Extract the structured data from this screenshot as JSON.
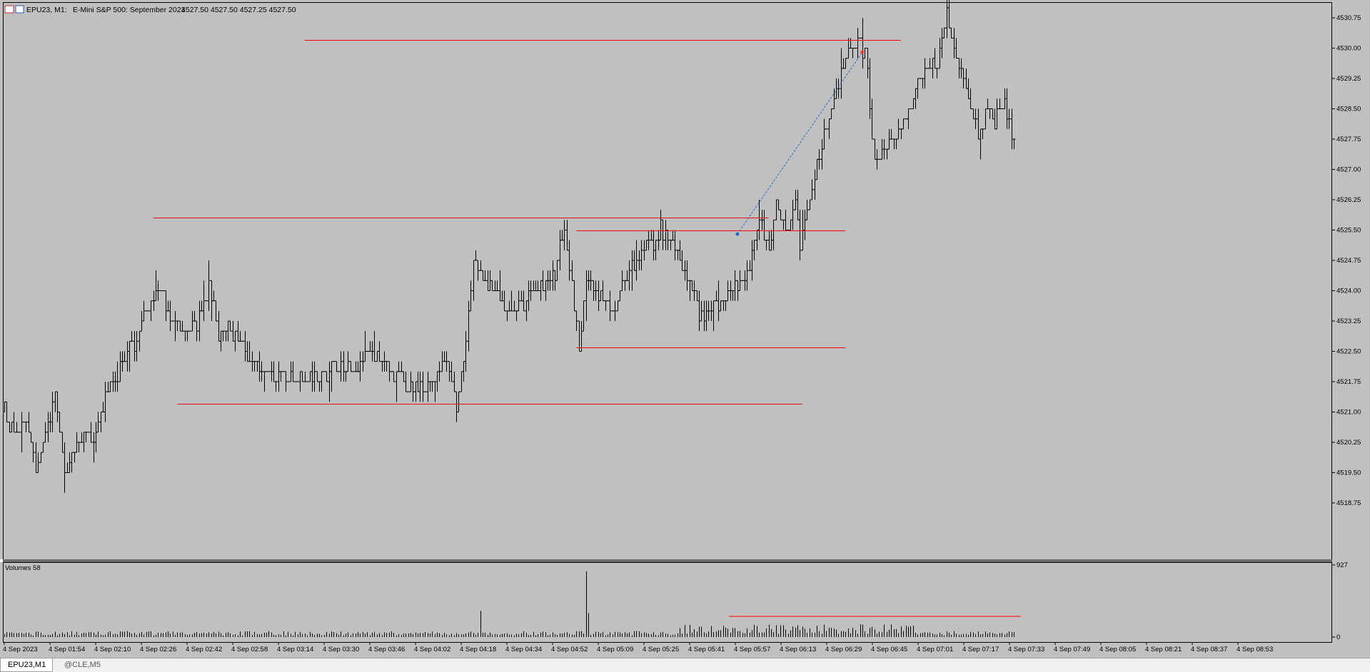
{
  "window": {
    "symbol_tf": "EPU23, M1:",
    "description": "E-Mini S&P 500: September 2023",
    "ohlc": "4527.50 4527.50 4527.25 4527.50"
  },
  "volume_pane": {
    "label": "Volumes 58",
    "scale_max": "927",
    "scale_min": "0"
  },
  "price_axis": [
    "4530.75",
    "4530.00",
    "4529.25",
    "4528.50",
    "4527.75",
    "4527.00",
    "4526.25",
    "4525.50",
    "4524.75",
    "4524.00",
    "4523.25",
    "4522.50",
    "4521.75",
    "4521.00",
    "4520.25",
    "4519.50",
    "4518.75"
  ],
  "time_axis": [
    "4 Sep 2023",
    "4 Sep 01:54",
    "4 Sep 02:10",
    "4 Sep 02:26",
    "4 Sep 02:42",
    "4 Sep 02:58",
    "4 Sep 03:14",
    "4 Sep 03:30",
    "4 Sep 03:46",
    "4 Sep 04:02",
    "4 Sep 04:18",
    "4 Sep 04:34",
    "4 Sep 04:52",
    "4 Sep 05:09",
    "4 Sep 05:25",
    "4 Sep 05:41",
    "4 Sep 05:57",
    "4 Sep 06:13",
    "4 Sep 06:29",
    "4 Sep 06:45",
    "4 Sep 07:01",
    "4 Sep 07:17",
    "4 Sep 07:33",
    "4 Sep 07:49",
    "4 Sep 08:05",
    "4 Sep 08:21",
    "4 Sep 08:37",
    "4 Sep 08:53"
  ],
  "tabs": [
    {
      "label": "EPU23,M1",
      "active": true
    },
    {
      "label": "@CLE,M5",
      "active": false
    }
  ],
  "colors": {
    "chart_bg": "#c0c0c0",
    "bars": "#000000",
    "levels": "#ff0000",
    "trendline": "#1e6fd0"
  },
  "chart_data": {
    "type": "bar",
    "path": [
      [
        0,
        4521.0
      ],
      [
        4,
        4520.3
      ],
      [
        9,
        4520.8
      ],
      [
        13,
        4519.6
      ],
      [
        16,
        4520.2
      ],
      [
        21,
        4521.4
      ],
      [
        25,
        4519.6
      ],
      [
        31,
        4520.2
      ],
      [
        37,
        4520.5
      ],
      [
        45,
        4521.8
      ],
      [
        54,
        4522.7
      ],
      [
        60,
        4523.7
      ],
      [
        66,
        4523.9
      ],
      [
        71,
        4523.0
      ],
      [
        79,
        4523.1
      ],
      [
        85,
        4524.1
      ],
      [
        89,
        4523.0
      ],
      [
        97,
        4523.0
      ],
      [
        104,
        4522.1
      ],
      [
        119,
        4521.8
      ],
      [
        133,
        4522.0
      ],
      [
        144,
        4522.1
      ],
      [
        153,
        4522.4
      ],
      [
        167,
        4521.7
      ],
      [
        170,
        4521.6
      ],
      [
        176,
        4521.7
      ],
      [
        184,
        4522.2
      ],
      [
        188,
        4521.2
      ],
      [
        192,
        4522.6
      ],
      [
        195,
        4524.8
      ],
      [
        204,
        4524.0
      ],
      [
        210,
        4523.5
      ],
      [
        225,
        4524.1
      ],
      [
        229,
        4524.5
      ],
      [
        233,
        4525.6
      ],
      [
        239,
        4522.7
      ],
      [
        242,
        4524.2
      ],
      [
        254,
        4523.5
      ],
      [
        258,
        4524.3
      ],
      [
        264,
        4524.8
      ],
      [
        268,
        4525.4
      ],
      [
        271,
        4525.1
      ],
      [
        273,
        4525.6
      ],
      [
        283,
        4524.6
      ],
      [
        289,
        4523.4
      ],
      [
        298,
        4523.7
      ],
      [
        305,
        4524.1
      ],
      [
        310,
        4524.6
      ],
      [
        314,
        4525.8
      ],
      [
        318,
        4525.0
      ],
      [
        321,
        4526.0
      ],
      [
        325,
        4525.5
      ],
      [
        329,
        4526.2
      ],
      [
        331,
        4525.0
      ],
      [
        335,
        4526.4
      ],
      [
        342,
        4528.1
      ],
      [
        348,
        4529.4
      ],
      [
        352,
        4530.2
      ],
      [
        358,
        4529.9
      ],
      [
        362,
        4527.3
      ],
      [
        368,
        4527.6
      ],
      [
        372,
        4528.0
      ],
      [
        377,
        4528.6
      ],
      [
        383,
        4529.5
      ],
      [
        388,
        4529.6
      ],
      [
        392,
        4530.9
      ],
      [
        396,
        4529.8
      ],
      [
        401,
        4528.7
      ],
      [
        405,
        4527.9
      ],
      [
        409,
        4528.4
      ],
      [
        412,
        4528.2
      ],
      [
        416,
        4528.7
      ],
      [
        419,
        4527.8
      ]
    ],
    "x_range_minutes": [
      0,
      420
    ],
    "ylim": [
      4518.25,
      4531.0
    ],
    "levels": [
      4530.2,
      4525.8,
      4525.5,
      4522.6,
      4521.2
    ],
    "volume_max": 927
  }
}
